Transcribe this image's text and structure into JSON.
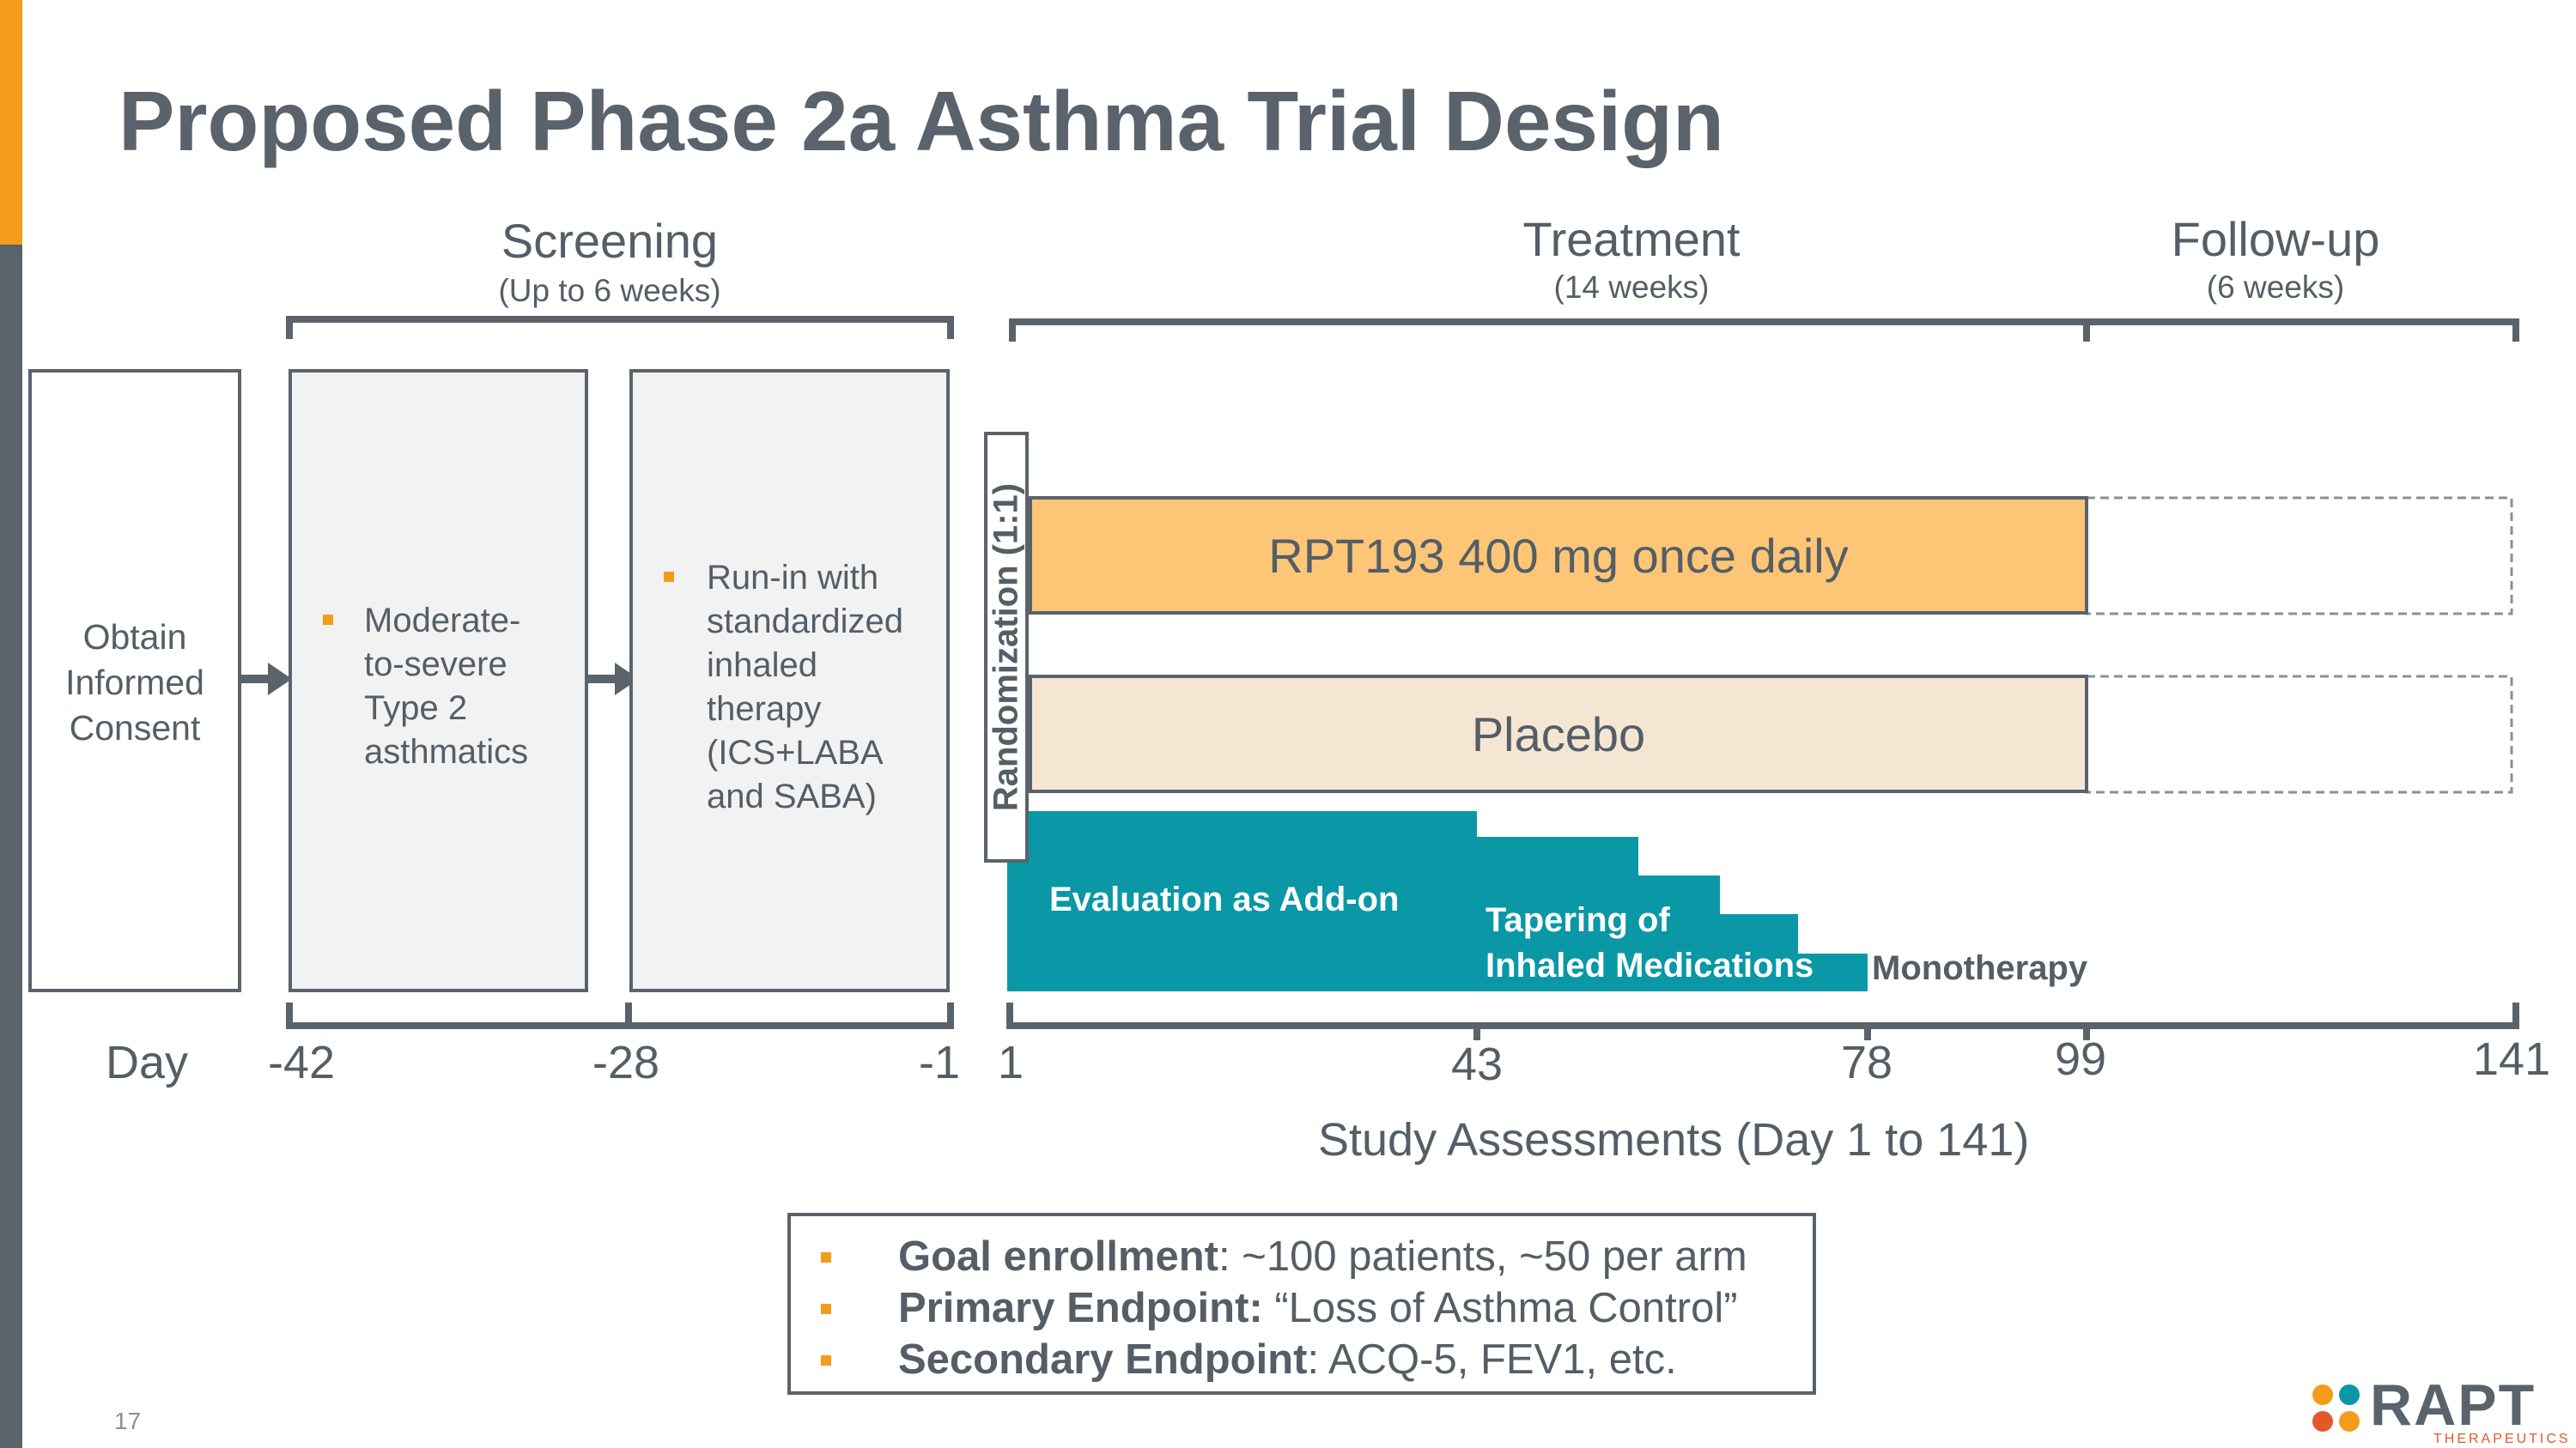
{
  "title": "Proposed Phase 2a Asthma Trial Design",
  "phases": {
    "screening": {
      "label": "Screening",
      "duration": "(Up to 6 weeks)"
    },
    "treatment": {
      "label": "Treatment",
      "duration": "(14 weeks)"
    },
    "followup": {
      "label": "Follow-up",
      "duration": "(6 weeks)"
    }
  },
  "steps": {
    "consent": [
      "Obtain",
      "Informed",
      "Consent"
    ],
    "population": [
      "Moderate-",
      "to-severe",
      "Type 2",
      "asthmatics"
    ],
    "runin": [
      "Run-in with",
      "standardized",
      "inhaled",
      "therapy",
      "(ICS+LABA",
      "and SABA)"
    ]
  },
  "randomization": "Randomization (1:1)",
  "arms": {
    "active": "RPT193 400 mg once daily",
    "placebo": "Placebo"
  },
  "stages": {
    "addon": "Evaluation as Add-on",
    "tapering": [
      "Tapering of",
      "Inhaled Medications"
    ],
    "monotherapy": "Monotherapy"
  },
  "days": {
    "label": "Day",
    "screening_ticks": [
      "-42",
      "-28",
      "-1"
    ],
    "treatment_ticks": [
      "1",
      "43",
      "78",
      "99",
      "141"
    ]
  },
  "assessments": "Study Assessments (Day 1 to 141)",
  "endpoints": [
    {
      "label": "Goal enrollment",
      "sep": ": ",
      "text": "~100 patients, ~50 per arm"
    },
    {
      "label": "Primary Endpoint:",
      "sep": " ",
      "text": "“Loss of Asthma Control”"
    },
    {
      "label": "Secondary Endpoint",
      "sep": ": ",
      "text": "ACQ-5, FEV1, etc."
    }
  ],
  "page_number": "17",
  "logo": {
    "name": "RAPT",
    "tagline": "THERAPEUTICS"
  },
  "colors": {
    "accent_orange": "#f39c1a",
    "active_arm": "#fdc677",
    "placebo_arm": "#f5e6d4",
    "teal": "#0a97a6",
    "dark_grey": "#5a636b"
  }
}
